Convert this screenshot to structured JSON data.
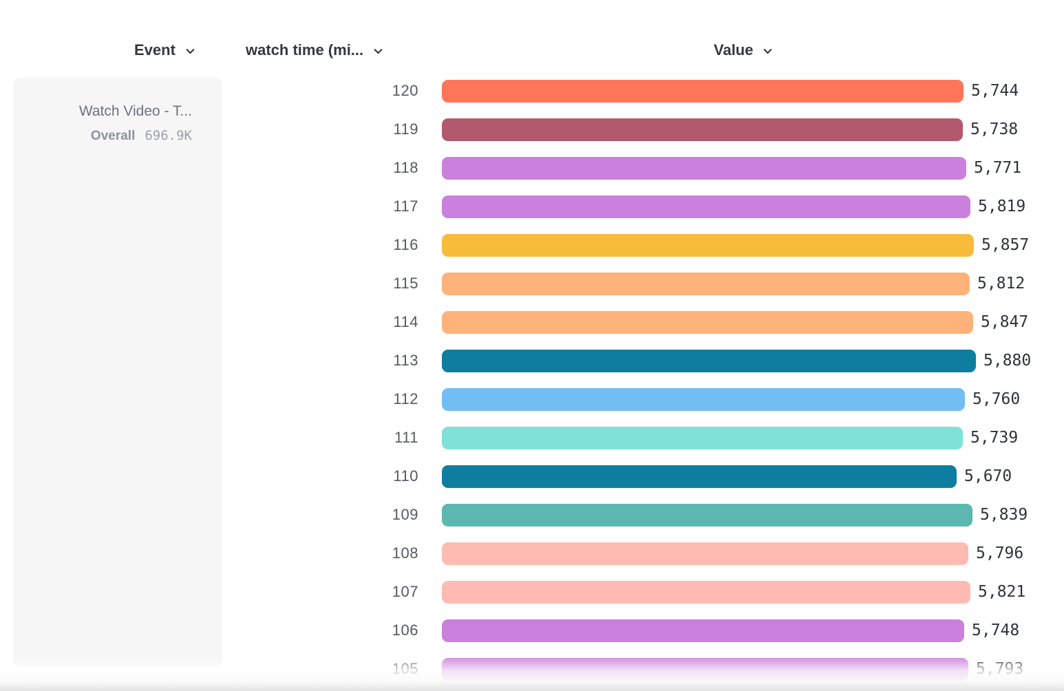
{
  "header": {
    "event_label": "Event",
    "breakdown_label": "watch time (mi...",
    "value_label": "Value"
  },
  "event_card": {
    "title": "Watch Video - T...",
    "overall_label": "Overall",
    "overall_value": "696.9K"
  },
  "chart_data": {
    "type": "bar",
    "orientation": "horizontal",
    "title": "",
    "xlabel": "Value",
    "ylabel": "watch time (mi...)",
    "axis_max": 5880,
    "grid": false,
    "legend": "none",
    "categories": [
      "120",
      "119",
      "118",
      "117",
      "116",
      "115",
      "114",
      "113",
      "112",
      "111",
      "110",
      "109",
      "108",
      "107",
      "106",
      "105"
    ],
    "values": [
      5744,
      5738,
      5771,
      5819,
      5857,
      5812,
      5847,
      5880,
      5760,
      5739,
      5670,
      5839,
      5796,
      5821,
      5748,
      5793
    ],
    "value_labels": [
      "5,744",
      "5,738",
      "5,771",
      "5,819",
      "5,857",
      "5,812",
      "5,847",
      "5,880",
      "5,760",
      "5,739",
      "5,670",
      "5,839",
      "5,796",
      "5,821",
      "5,748",
      "5,793"
    ],
    "colors": [
      "#FF7557",
      "#B2596E",
      "#CA80DC",
      "#CA80DC",
      "#F8BC3B",
      "#FFB27A",
      "#FFB27A",
      "#0D7EA0",
      "#72BEF4",
      "#80E1D9",
      "#0D7EA0",
      "#5BB7AF",
      "#FEBBB2",
      "#FEBBB2",
      "#CA80DC",
      "#CA80DC"
    ]
  }
}
